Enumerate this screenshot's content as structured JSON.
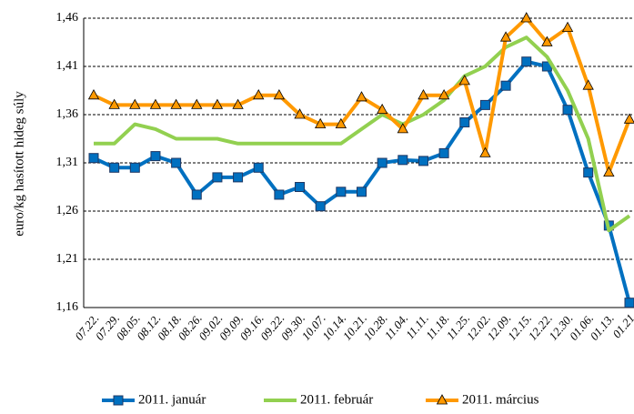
{
  "chart_data": {
    "type": "line",
    "y_label": "euro/kg hasított hideg súly",
    "categories": [
      "07.22.",
      "07.29.",
      "08.05.",
      "08.12.",
      "08.18.",
      "08.26.",
      "09.02.",
      "09.09.",
      "09.16.",
      "09.22.",
      "09.30.",
      "10.07.",
      "10.14.",
      "10.21.",
      "10.28.",
      "11.04.",
      "11.11.",
      "11.18.",
      "11.25.",
      "12.02.",
      "12.09.",
      "12.15.",
      "12.22.",
      "12.30.",
      "01.06.",
      "01.13.",
      "01.21"
    ],
    "series": [
      {
        "name": "2011. január",
        "color": "#0070c0",
        "marker": "square",
        "values": [
          1.315,
          1.305,
          1.305,
          1.317,
          1.31,
          1.277,
          1.295,
          1.295,
          1.305,
          1.277,
          1.285,
          1.265,
          1.28,
          1.28,
          1.31,
          1.313,
          1.312,
          1.32,
          1.352,
          1.37,
          1.39,
          1.415,
          1.41,
          1.365,
          1.3,
          1.245,
          1.165
        ]
      },
      {
        "name": "2011. február",
        "color": "#92d050",
        "marker": "none",
        "values": [
          1.33,
          1.33,
          1.35,
          1.345,
          1.335,
          1.335,
          1.335,
          1.33,
          1.33,
          1.33,
          1.33,
          1.33,
          1.33,
          1.345,
          1.36,
          1.35,
          1.36,
          1.375,
          1.4,
          1.41,
          1.43,
          1.44,
          1.42,
          1.385,
          1.335,
          1.24,
          1.255
        ]
      },
      {
        "name": "2011. március",
        "color": "#ff9900",
        "marker": "triangle",
        "values": [
          1.38,
          1.37,
          1.37,
          1.37,
          1.37,
          1.37,
          1.37,
          1.37,
          1.38,
          1.38,
          1.36,
          1.35,
          1.35,
          1.378,
          1.365,
          1.345,
          1.38,
          1.38,
          1.395,
          1.32,
          1.44,
          1.46,
          1.435,
          1.45,
          1.39,
          1.3,
          1.355
        ]
      }
    ],
    "ylim": [
      1.16,
      1.46
    ],
    "yticks": [
      {
        "value": 1.16,
        "label": "1,16"
      },
      {
        "value": 1.21,
        "label": "1,21"
      },
      {
        "value": 1.26,
        "label": "1,26"
      },
      {
        "value": 1.31,
        "label": "1,31"
      },
      {
        "value": 1.36,
        "label": "1,36"
      },
      {
        "value": 1.41,
        "label": "1,41"
      },
      {
        "value": 1.46,
        "label": "1,46"
      }
    ],
    "grid": true,
    "legend": "bottom"
  }
}
